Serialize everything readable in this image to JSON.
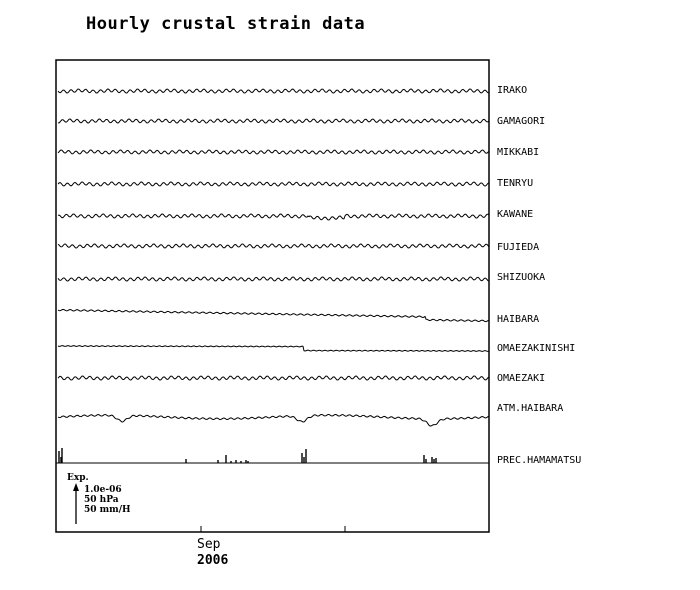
{
  "chart_data": {
    "type": "line",
    "title": "Hourly crustal strain data",
    "x_tick_label": "Sep",
    "x_year_label": "2006",
    "series": [
      {
        "name": "IRAKO",
        "style": "wavy",
        "shift": 0
      },
      {
        "name": "GAMAGORI",
        "style": "wavy",
        "shift": 0
      },
      {
        "name": "MIKKABI",
        "style": "wavy",
        "shift": 0
      },
      {
        "name": "TENRYU",
        "style": "wavy",
        "shift": 0
      },
      {
        "name": "KAWANE",
        "style": "wavy",
        "shift": 1
      },
      {
        "name": "FUJIEDA",
        "style": "wavy",
        "shift": 0
      },
      {
        "name": "SHIZUOKA",
        "style": "wavy",
        "shift": 0
      },
      {
        "name": "HAIBARA",
        "style": "drift",
        "shift": 0
      },
      {
        "name": "OMAEZAKINISHI",
        "style": "step",
        "shift": 0
      },
      {
        "name": "OMAEZAKI",
        "style": "wavy",
        "shift": 0
      },
      {
        "name": "ATM.HAIBARA",
        "style": "pressure",
        "shift": 0
      },
      {
        "name": "PREC.HAMAMATSU",
        "style": "precip",
        "shift": 0
      }
    ],
    "scale_legend": {
      "label": "Exp.",
      "strain": "1.0e-06",
      "pressure": "50 hPa",
      "precipitation": "50 mm/H"
    }
  }
}
